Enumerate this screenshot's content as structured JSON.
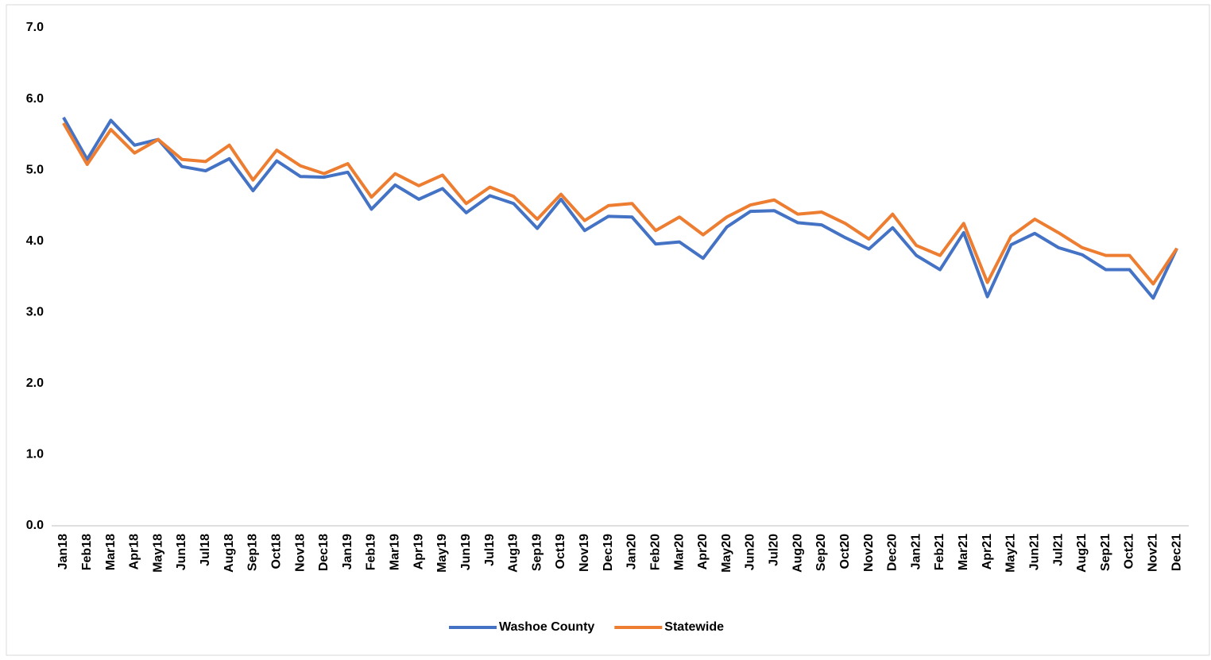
{
  "chart_data": {
    "type": "line",
    "categories": [
      "Jan18",
      "Feb18",
      "Mar18",
      "Apr18",
      "May18",
      "Jun18",
      "Jul18",
      "Aug18",
      "Sep18",
      "Oct18",
      "Nov18",
      "Dec18",
      "Jan19",
      "Feb19",
      "Mar19",
      "Apr19",
      "May19",
      "Jun19",
      "Jul19",
      "Aug19",
      "Sep19",
      "Oct19",
      "Nov19",
      "Dec19",
      "Jan20",
      "Feb20",
      "Mar20",
      "Apr20",
      "May20",
      "Jun20",
      "Jul20",
      "Aug20",
      "Sep20",
      "Oct20",
      "Nov20",
      "Dec20",
      "Jan21",
      "Feb21",
      "Mar21",
      "Apr21",
      "May21",
      "Jun21",
      "Jul21",
      "Aug21",
      "Sep21",
      "Oct21",
      "Nov21",
      "Dec21"
    ],
    "series": [
      {
        "name": "Washoe County",
        "color": "#4472c4",
        "values": [
          5.74,
          5.15,
          5.7,
          5.35,
          5.43,
          5.05,
          4.99,
          5.16,
          4.71,
          5.13,
          4.91,
          4.9,
          4.97,
          4.45,
          4.79,
          4.59,
          4.74,
          4.4,
          4.64,
          4.53,
          4.18,
          4.59,
          4.15,
          4.35,
          4.34,
          3.96,
          3.99,
          3.76,
          4.2,
          4.42,
          4.43,
          4.26,
          4.23,
          4.05,
          3.89,
          4.19,
          3.8,
          3.6,
          4.12,
          3.22,
          3.95,
          4.11,
          3.91,
          3.81,
          3.6,
          3.6,
          3.2,
          3.9
        ]
      },
      {
        "name": "Statewide",
        "color": "#ed7d31",
        "values": [
          5.66,
          5.08,
          5.57,
          5.24,
          5.43,
          5.15,
          5.12,
          5.35,
          4.86,
          5.28,
          5.06,
          4.95,
          5.09,
          4.62,
          4.95,
          4.78,
          4.93,
          4.53,
          4.76,
          4.63,
          4.31,
          4.66,
          4.29,
          4.5,
          4.53,
          4.15,
          4.34,
          4.09,
          4.34,
          4.51,
          4.58,
          4.38,
          4.41,
          4.25,
          4.03,
          4.38,
          3.94,
          3.8,
          4.25,
          3.42,
          4.07,
          4.31,
          4.12,
          3.91,
          3.8,
          3.8,
          3.4,
          3.9
        ]
      }
    ],
    "ylim": [
      0,
      7
    ],
    "yticks": [
      {
        "value": 0,
        "label": "0.0"
      },
      {
        "value": 1,
        "label": "1.0"
      },
      {
        "value": 2,
        "label": "2.0"
      },
      {
        "value": 3,
        "label": "3.0"
      },
      {
        "value": 4,
        "label": "4.0"
      },
      {
        "value": 5,
        "label": "5.0"
      },
      {
        "value": 6,
        "label": "6.0"
      },
      {
        "value": 7,
        "label": "7.0"
      }
    ],
    "grid": false,
    "legend": "bottom"
  }
}
